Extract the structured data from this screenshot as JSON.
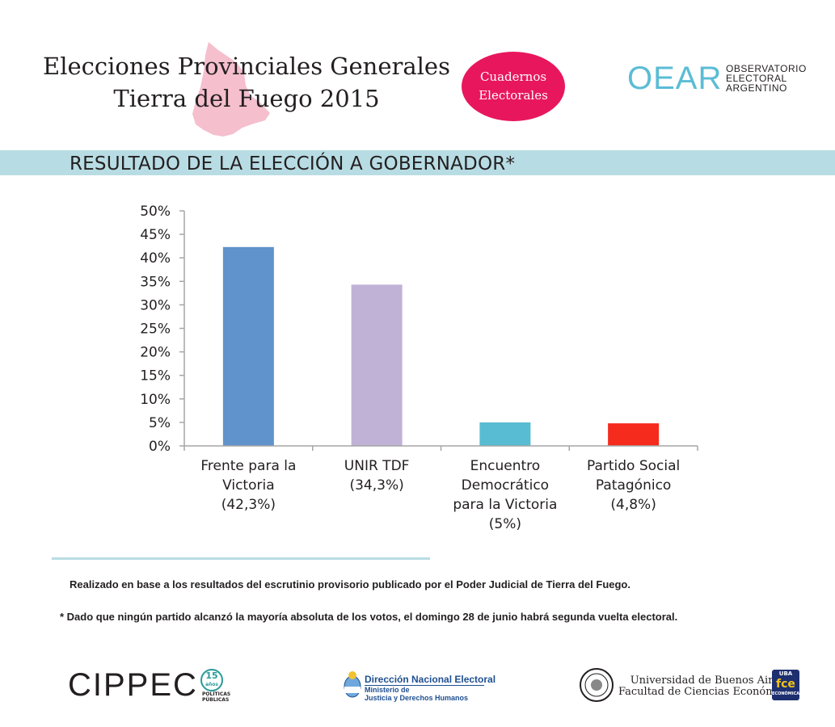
{
  "header": {
    "title_line1": "Elecciones Provinciales Generales",
    "title_line2": "Tierra del Fuego 2015",
    "badge_line1": "Cuadernos",
    "badge_line2": "Electorales",
    "oear_logo": "OEAR",
    "oear_line1": "OBSERVATORIO",
    "oear_line2": "ELECTORAL",
    "oear_line3": "ARGENTINO",
    "map_color": "#f4b8c8",
    "badge_color": "#e8175d",
    "oear_color": "#5bbcd6"
  },
  "section_title": "RESULTADO DE LA ELECCIÓN A GOBERNADOR*",
  "band_color": "#b8dce3",
  "chart_data": {
    "type": "bar",
    "title": "RESULTADO DE LA ELECCIÓN A GOBERNADOR*",
    "xlabel": "",
    "ylabel": "",
    "ylim": [
      0,
      50
    ],
    "yticks": [
      0,
      5,
      10,
      15,
      20,
      25,
      30,
      35,
      40,
      45,
      50
    ],
    "ytick_labels": [
      "0%",
      "5%",
      "10%",
      "15%",
      "20%",
      "25%",
      "30%",
      "35%",
      "40%",
      "45%",
      "50%"
    ],
    "categories": [
      [
        "Frente para la",
        "Victoria",
        "(42,3%)"
      ],
      [
        "UNIR TDF",
        "(34,3%)"
      ],
      [
        "Encuentro",
        "Democrático",
        "para la Victoria",
        "(5%)"
      ],
      [
        "Partido Social",
        "Patagónico",
        "(4,8%)"
      ]
    ],
    "values": [
      42.3,
      34.3,
      5.0,
      4.8
    ],
    "colors": [
      "#6092cb",
      "#c0b2d6",
      "#58bcd2",
      "#f52b1d"
    ],
    "grid": false,
    "legend": "none"
  },
  "notes": {
    "source": "Realizado en base a los resultados del escrutinio provisorio publicado por el Poder Judicial de Tierra del Fuego.",
    "footnote": "* Dado que ningún partido alcanzó la mayoría absoluta de los votos, el domingo 28 de junio habrá segunda vuelta electoral."
  },
  "footer": {
    "cippec": "CIPPEC",
    "cippec_years": "15",
    "cippec_years_label": "años",
    "cippec_sub1": "POLÍTICAS",
    "cippec_sub2": "PÚBLICAS",
    "dne_title": "Dirección Nacional Electoral",
    "dne_sub1": "Ministerio de",
    "dne_sub2": "Justicia y Derechos Humanos",
    "uba_line1": "Universidad de Buenos Aires",
    "uba_line2": "Facultad de Ciencias Económicas",
    "fce_top": "UBA",
    "fce_mid": "fce",
    "fce_bottom": "ECONÓMICAS"
  }
}
